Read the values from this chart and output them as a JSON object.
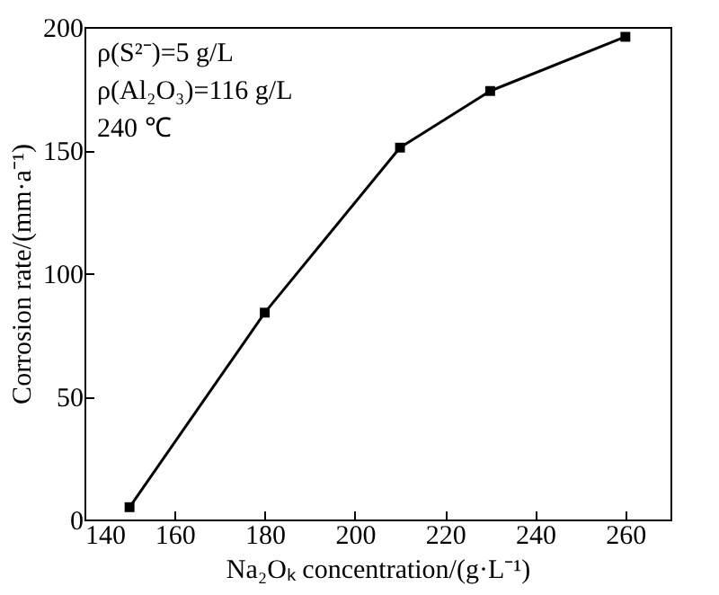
{
  "chart_data": {
    "type": "line",
    "xlabel": "Na₂Oₖ concentration/(g·L⁻¹)",
    "ylabel": "Corrosion rate/(mm·a⁻¹)",
    "x": [
      150,
      180,
      210,
      230,
      260
    ],
    "series": [
      {
        "color": "#000000",
        "values": [
          5,
          84,
          151,
          174,
          196
        ]
      }
    ],
    "xlim": [
      140,
      270
    ],
    "xticks": [
      140,
      160,
      180,
      200,
      220,
      240,
      260
    ],
    "ylim": [
      0,
      200
    ],
    "yticks": [
      0,
      50,
      100,
      150,
      200
    ],
    "marker": "square",
    "line_style": "solid",
    "annotations": [
      "ρ(S²⁻)=5 g/L",
      "ρ(Al₂O₃)=116 g/L",
      "240 ℃"
    ]
  }
}
